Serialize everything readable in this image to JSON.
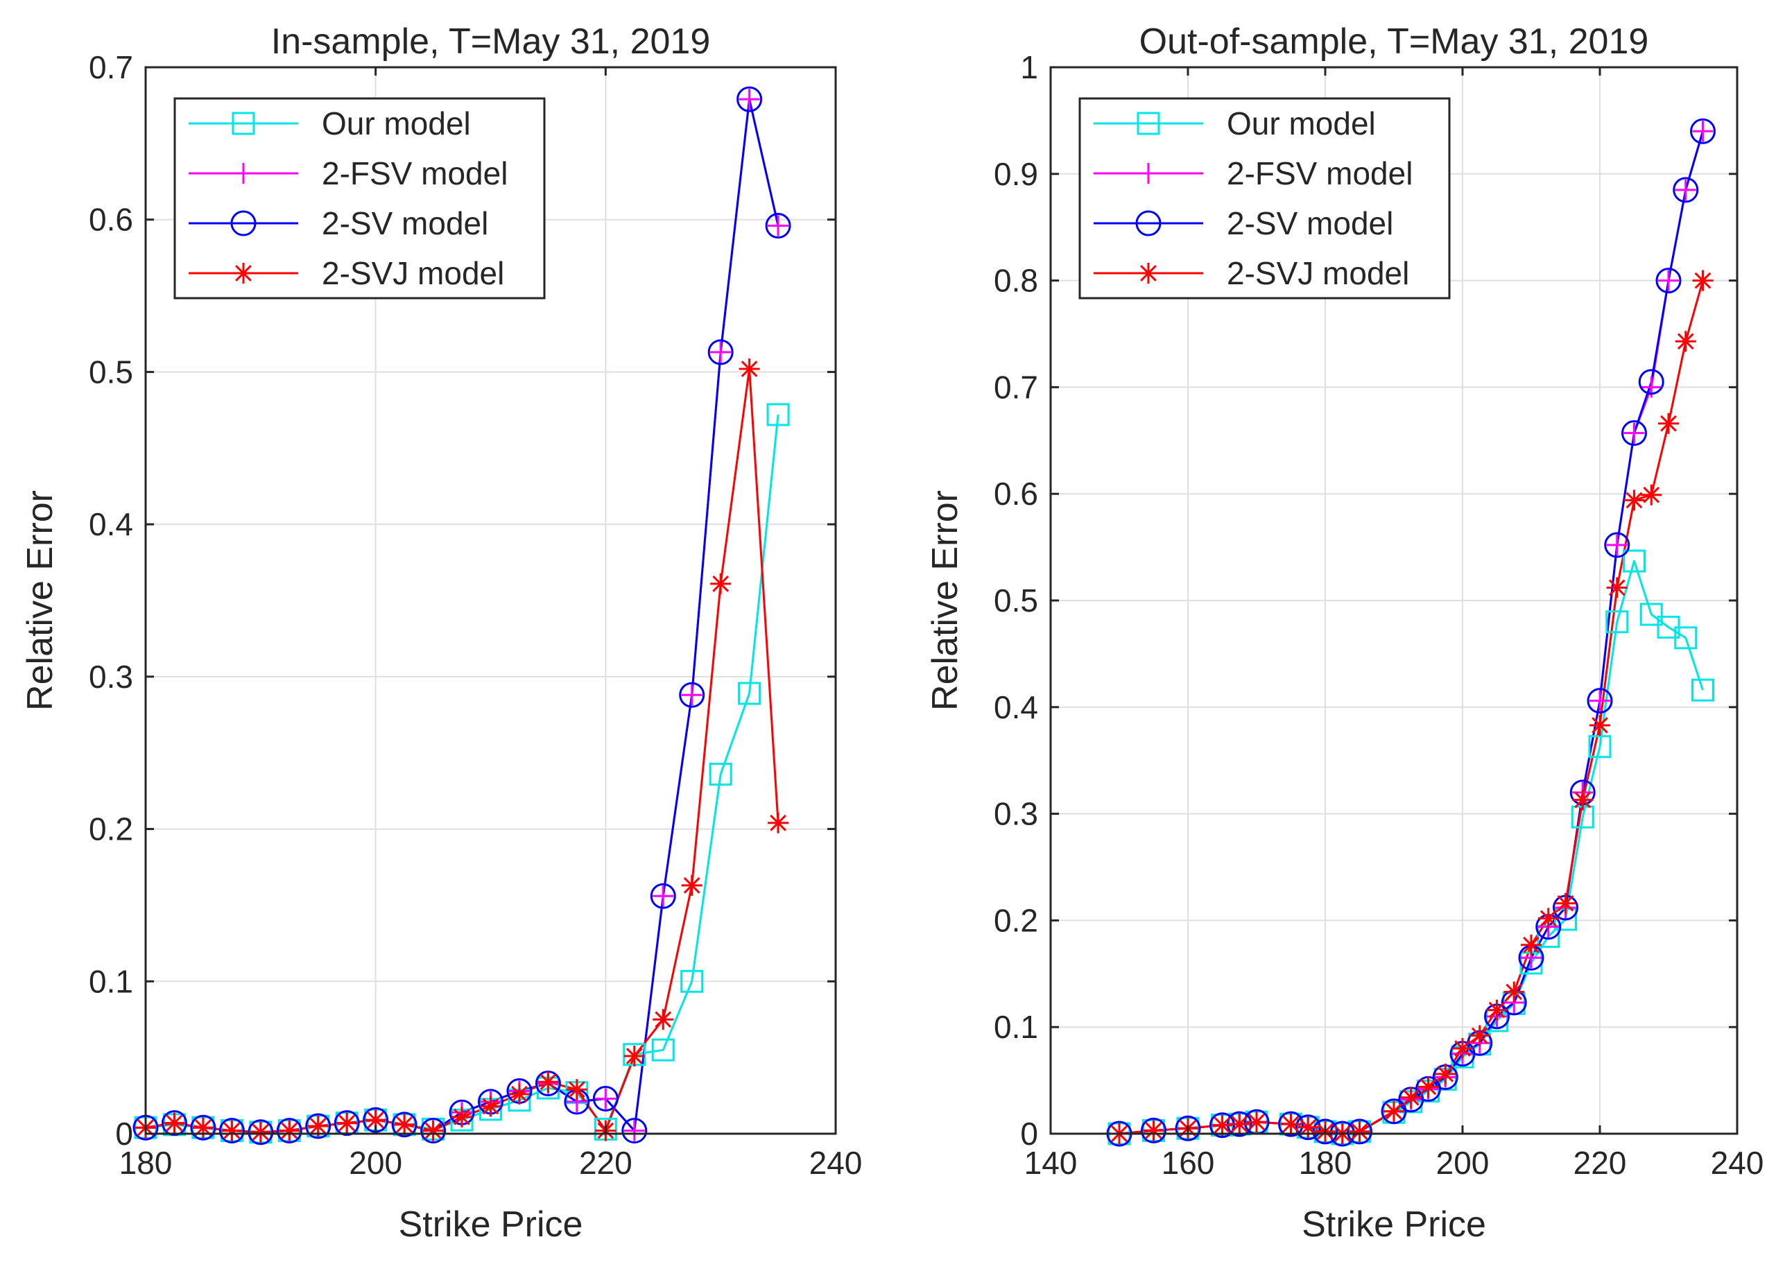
{
  "chart_data": [
    {
      "type": "line",
      "title": "In-sample, T=May 31, 2019",
      "xlabel": "Strike Price",
      "ylabel": "Relative Error",
      "xlim": [
        180,
        240
      ],
      "ylim": [
        0,
        0.7
      ],
      "xticks": [
        180,
        200,
        220,
        240
      ],
      "xtick_labels": [
        "180",
        "200",
        "220",
        "240"
      ],
      "yticks": [
        0,
        0.1,
        0.2,
        0.3,
        0.4,
        0.5,
        0.6,
        0.7
      ],
      "ytick_labels": [
        "0",
        "0.1",
        "0.2",
        "0.3",
        "0.4",
        "0.5",
        "0.6",
        "0.7"
      ],
      "grid": true,
      "legend_position": "top-left",
      "x": [
        180,
        182.5,
        185,
        187.5,
        190,
        192.5,
        195,
        197.5,
        200,
        202.5,
        205,
        207.5,
        210,
        212.5,
        215,
        217.5,
        220,
        222.5,
        225,
        227.5,
        230,
        232.5,
        235
      ],
      "series": [
        {
          "name": "Our model",
          "color": "#00e5e5",
          "marker": "square",
          "values": [
            0.004,
            0.006,
            0.004,
            0.002,
            0.001,
            0.002,
            0.005,
            0.007,
            0.009,
            0.006,
            0.003,
            0.009,
            0.016,
            0.022,
            0.03,
            0.027,
            0.003,
            0.052,
            0.055,
            0.1,
            0.236,
            0.289,
            0.472
          ]
        },
        {
          "name": "2-FSV model",
          "color": "#ff00ff",
          "marker": "plus",
          "values": [
            0.004,
            0.007,
            0.004,
            0.002,
            0.001,
            0.002,
            0.005,
            0.007,
            0.009,
            0.006,
            0.002,
            0.014,
            0.021,
            0.028,
            0.033,
            0.021,
            0.023,
            0.002,
            0.156,
            0.288,
            0.513,
            0.679,
            0.596
          ]
        },
        {
          "name": "2-SV model",
          "color": "#0000ff",
          "marker": "circle",
          "values": [
            0.004,
            0.007,
            0.004,
            0.002,
            0.001,
            0.002,
            0.005,
            0.007,
            0.009,
            0.006,
            0.002,
            0.014,
            0.021,
            0.028,
            0.033,
            0.021,
            0.023,
            0.002,
            0.156,
            0.288,
            0.513,
            0.679,
            0.596
          ]
        },
        {
          "name": "2-SVJ model",
          "color": "#ff0000",
          "marker": "asterisk",
          "values": [
            0.004,
            0.007,
            0.004,
            0.002,
            0.001,
            0.002,
            0.005,
            0.007,
            0.009,
            0.006,
            0.002,
            0.011,
            0.018,
            0.026,
            0.034,
            0.029,
            0.002,
            0.051,
            0.075,
            0.163,
            0.361,
            0.502,
            0.204
          ]
        }
      ]
    },
    {
      "type": "line",
      "title": "Out-of-sample, T=May 31, 2019",
      "xlabel": "Strike Price",
      "ylabel": "Relative Error",
      "xlim": [
        140,
        240
      ],
      "ylim": [
        0,
        1
      ],
      "xticks": [
        140,
        160,
        180,
        200,
        220,
        240
      ],
      "xtick_labels": [
        "140",
        "160",
        "180",
        "200",
        "220",
        "240"
      ],
      "yticks": [
        0,
        0.1,
        0.2,
        0.3,
        0.4,
        0.5,
        0.6,
        0.7,
        0.8,
        0.9,
        1
      ],
      "ytick_labels": [
        "0",
        "0.1",
        "0.2",
        "0.3",
        "0.4",
        "0.5",
        "0.6",
        "0.7",
        "0.8",
        "0.9",
        "1"
      ],
      "grid": true,
      "legend_position": "top-left",
      "x": [
        150,
        155,
        160,
        165,
        167.5,
        170,
        175,
        177.5,
        180,
        182.5,
        185,
        190,
        192.5,
        195,
        197.5,
        200,
        202.5,
        205,
        207.5,
        210,
        212.5,
        215,
        217.5,
        220,
        222.5,
        225,
        227.5,
        230,
        232.5,
        235
      ],
      "series": [
        {
          "name": "Our model",
          "color": "#00e5e5",
          "marker": "square",
          "values": [
            0.0,
            0.003,
            0.005,
            0.008,
            0.009,
            0.011,
            0.009,
            0.006,
            0.002,
            0.0,
            0.002,
            0.02,
            0.03,
            0.04,
            0.051,
            0.072,
            0.084,
            0.106,
            0.122,
            0.16,
            0.185,
            0.201,
            0.297,
            0.363,
            0.48,
            0.537,
            0.487,
            0.475,
            0.465,
            0.416
          ]
        },
        {
          "name": "2-FSV model",
          "color": "#ff00ff",
          "marker": "plus",
          "values": [
            0.0,
            0.003,
            0.005,
            0.008,
            0.009,
            0.011,
            0.009,
            0.006,
            0.002,
            0.0,
            0.002,
            0.021,
            0.032,
            0.042,
            0.053,
            0.075,
            0.085,
            0.11,
            0.123,
            0.165,
            0.194,
            0.212,
            0.32,
            0.406,
            0.552,
            0.657,
            0.7,
            0.8,
            0.885,
            0.94
          ]
        },
        {
          "name": "2-SV model",
          "color": "#0000ff",
          "marker": "circle",
          "values": [
            0.0,
            0.003,
            0.005,
            0.008,
            0.009,
            0.011,
            0.009,
            0.006,
            0.002,
            0.0,
            0.002,
            0.021,
            0.032,
            0.042,
            0.053,
            0.075,
            0.085,
            0.11,
            0.123,
            0.165,
            0.194,
            0.212,
            0.32,
            0.406,
            0.552,
            0.657,
            0.705,
            0.8,
            0.885,
            0.94
          ]
        },
        {
          "name": "2-SVJ model",
          "color": "#ff0000",
          "marker": "asterisk",
          "values": [
            0.0,
            0.003,
            0.005,
            0.008,
            0.009,
            0.011,
            0.009,
            0.006,
            0.002,
            0.0,
            0.002,
            0.021,
            0.034,
            0.044,
            0.056,
            0.08,
            0.092,
            0.116,
            0.133,
            0.177,
            0.202,
            0.216,
            0.313,
            0.383,
            0.512,
            0.594,
            0.599,
            0.666,
            0.743,
            0.8
          ]
        }
      ]
    }
  ]
}
